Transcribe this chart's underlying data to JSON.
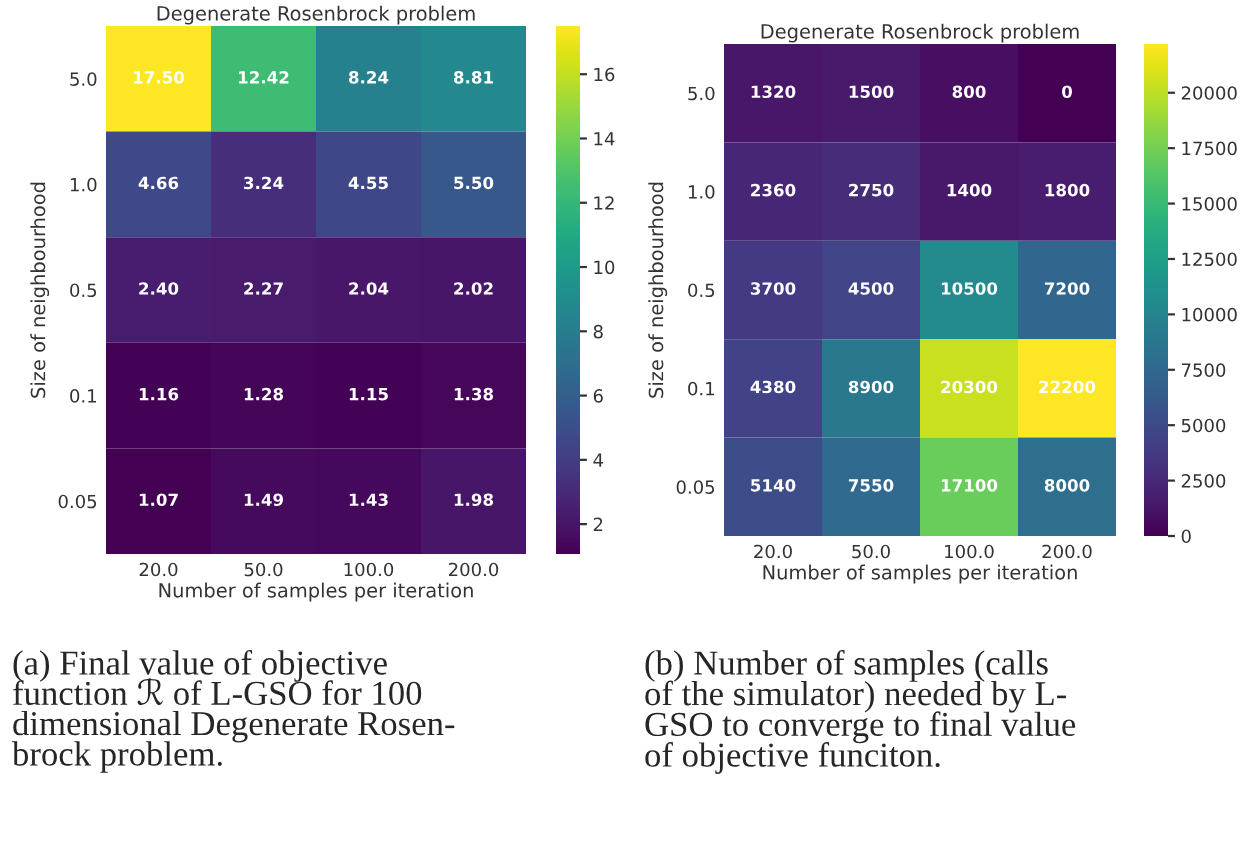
{
  "chart_data": [
    {
      "type": "heatmap",
      "title": "Degenerate Rosenbrock problem",
      "xlabel": "Number of samples per iteration",
      "ylabel": "Size of neighbourhood",
      "categories": [
        "20.0",
        "50.0",
        "100.0",
        "200.0"
      ],
      "y_categories": [
        "5.0",
        "1.0",
        "0.5",
        "0.1",
        "0.05"
      ],
      "cells": [
        [
          17.5,
          12.42,
          8.24,
          8.81
        ],
        [
          4.66,
          3.24,
          4.55,
          5.5
        ],
        [
          2.4,
          2.27,
          2.04,
          2.02
        ],
        [
          1.16,
          1.28,
          1.15,
          1.38
        ],
        [
          1.07,
          1.49,
          1.43,
          1.98
        ]
      ],
      "cell_labels": [
        [
          "17.50",
          "12.42",
          "8.24",
          "8.81"
        ],
        [
          "4.66",
          "3.24",
          "4.55",
          "5.50"
        ],
        [
          "2.40",
          "2.27",
          "2.04",
          "2.02"
        ],
        [
          "1.16",
          "1.28",
          "1.15",
          "1.38"
        ],
        [
          "1.07",
          "1.49",
          "1.43",
          "1.98"
        ]
      ],
      "clim": [
        1.07,
        17.5
      ],
      "cticks": [
        2,
        4,
        6,
        8,
        10,
        12,
        14,
        16
      ],
      "annotations": [
        "(a) Final value of objective\nfunction ℛ of L-GSO for 100\ndimensional Degenerate Rosen-\nbrock problem."
      ]
    },
    {
      "type": "heatmap",
      "title": "Degenerate Rosenbrock problem",
      "xlabel": "Number of samples per iteration",
      "ylabel": "Size of neighbourhood",
      "categories": [
        "20.0",
        "50.0",
        "100.0",
        "200.0"
      ],
      "y_categories": [
        "5.0",
        "1.0",
        "0.5",
        "0.1",
        "0.05"
      ],
      "cells": [
        [
          1320,
          1500,
          800,
          0
        ],
        [
          2360,
          2750,
          1400,
          1800
        ],
        [
          3700,
          4500,
          10500,
          7200
        ],
        [
          4380,
          8900,
          20300,
          22200
        ],
        [
          5140,
          7550,
          17100,
          8000
        ]
      ],
      "data_labels": true,
      "clim": [
        0,
        22200
      ],
      "cticks": [
        0,
        2500,
        5000,
        7500,
        10000,
        12500,
        15000,
        17500,
        20000
      ],
      "annotations": [
        "(b) Number of samples (calls\nof the simulator) needed by L-\nGSO to converge to final value\nof objective funciton."
      ]
    }
  ]
}
